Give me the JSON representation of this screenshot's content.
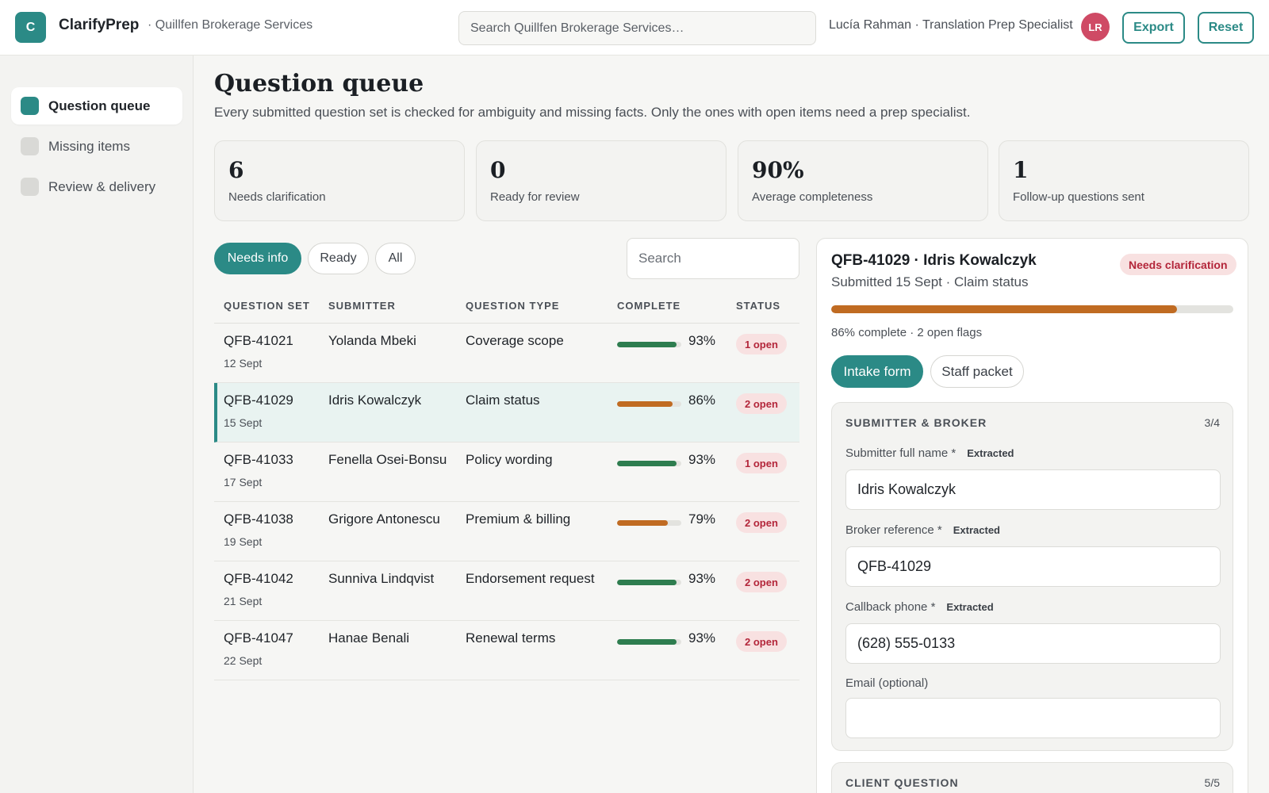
{
  "header": {
    "logo_letter": "C",
    "brand": "ClarifyPrep",
    "org": "· Quillfen Brokerage Services",
    "search_placeholder": "Search Quillfen Brokerage Services…",
    "user": "Lucía Rahman · Translation Prep Specialist",
    "avatar_initials": "LR",
    "export_label": "Export",
    "reset_label": "Reset"
  },
  "sidebar": {
    "items": [
      {
        "label": "Question queue",
        "active": true
      },
      {
        "label": "Missing items",
        "active": false
      },
      {
        "label": "Review & delivery",
        "active": false
      }
    ]
  },
  "page": {
    "title": "Question queue",
    "subtitle": "Every submitted question set is checked for ambiguity and missing facts. Only the ones with open items need a prep specialist."
  },
  "stats": [
    {
      "value": "6",
      "label": "Needs clarification"
    },
    {
      "value": "0",
      "label": "Ready for review"
    },
    {
      "value": "90%",
      "label": "Average completeness"
    },
    {
      "value": "1",
      "label": "Follow-up questions sent"
    }
  ],
  "filters": {
    "chips": [
      "Needs info",
      "Ready",
      "All"
    ],
    "active": "Needs info",
    "search_placeholder": "Search"
  },
  "table": {
    "columns": [
      "QUESTION SET",
      "SUBMITTER",
      "QUESTION TYPE",
      "COMPLETE",
      "STATUS"
    ],
    "rows": [
      {
        "id": "QFB-41021",
        "date": "12 Sept",
        "submitter": "Yolanda Mbeki",
        "type": "Coverage scope",
        "complete": 93,
        "complete_label": "93%",
        "status": "1 open",
        "bar_color": "#2e7d4f"
      },
      {
        "id": "QFB-41029",
        "date": "15 Sept",
        "submitter": "Idris Kowalczyk",
        "type": "Claim status",
        "complete": 86,
        "complete_label": "86%",
        "status": "2 open",
        "bar_color": "#c06b22",
        "selected": true
      },
      {
        "id": "QFB-41033",
        "date": "17 Sept",
        "submitter": "Fenella Osei-Bonsu",
        "type": "Policy wording",
        "complete": 93,
        "complete_label": "93%",
        "status": "1 open",
        "bar_color": "#2e7d4f"
      },
      {
        "id": "QFB-41038",
        "date": "19 Sept",
        "submitter": "Grigore Antonescu",
        "type": "Premium & billing",
        "complete": 79,
        "complete_label": "79%",
        "status": "2 open",
        "bar_color": "#c06b22"
      },
      {
        "id": "QFB-41042",
        "date": "21 Sept",
        "submitter": "Sunniva Lindqvist",
        "type": "Endorsement request",
        "complete": 93,
        "complete_label": "93%",
        "status": "2 open",
        "bar_color": "#2e7d4f"
      },
      {
        "id": "QFB-41047",
        "date": "22 Sept",
        "submitter": "Hanae Benali",
        "type": "Renewal terms",
        "complete": 93,
        "complete_label": "93%",
        "status": "2 open",
        "bar_color": "#2e7d4f"
      }
    ]
  },
  "detail": {
    "title": "QFB-41029 · Idris Kowalczyk",
    "subtitle": "Submitted 15 Sept · Claim status",
    "badge": "Needs clarification",
    "complete": 86,
    "progress_text": "86% complete · 2 open flags",
    "tabs": [
      "Intake form",
      "Staff packet"
    ],
    "active_tab": "Intake form",
    "section1": {
      "title": "SUBMITTER & BROKER",
      "count": "3/4",
      "fields": [
        {
          "label": "Submitter full name *",
          "tag": "Extracted",
          "value": "Idris Kowalczyk"
        },
        {
          "label": "Broker reference *",
          "tag": "Extracted",
          "value": "QFB-41029"
        },
        {
          "label": "Callback phone *",
          "tag": "Extracted",
          "value": "(628) 555-0133"
        },
        {
          "label": "Email (optional)",
          "tag": "",
          "value": ""
        }
      ]
    },
    "section2": {
      "title": "CLIENT QUESTION",
      "count": "5/5"
    }
  },
  "colors": {
    "accent": "#2b8a86",
    "good": "#2e7d4f",
    "warn": "#c06b22",
    "alert": "#b3263a"
  }
}
